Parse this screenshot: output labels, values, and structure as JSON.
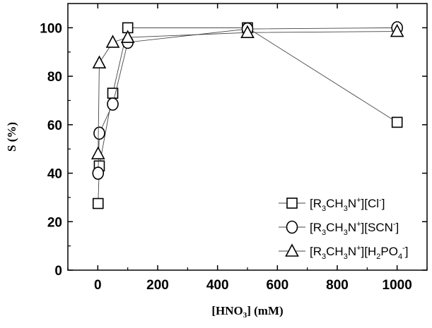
{
  "chart_data": {
    "type": "line",
    "xlabel": {
      "pre": "[HNO",
      "sub": "3",
      "post": "] (mM)"
    },
    "ylabel": "S (%)",
    "xlim": [
      -100,
      1100
    ],
    "ylim": [
      0,
      110
    ],
    "xticks": [
      0,
      200,
      400,
      600,
      800,
      1000
    ],
    "yticks": [
      0,
      20,
      40,
      60,
      80,
      100
    ],
    "legend_position": "bottom-right",
    "series": [
      {
        "marker": "square",
        "label_parts": [
          {
            "t": "[R",
            "s": ""
          },
          {
            "t": "3",
            "s": "sub"
          },
          {
            "t": "CH",
            "s": ""
          },
          {
            "t": "3",
            "s": "sub"
          },
          {
            "t": "N",
            "s": ""
          },
          {
            "t": "+",
            "s": "sup"
          },
          {
            "t": "][Cl",
            "s": ""
          },
          {
            "t": "-",
            "s": "sup"
          },
          {
            "t": "]",
            "s": ""
          }
        ],
        "x": [
          1,
          5,
          50,
          100,
          500,
          1000
        ],
        "y": [
          27.5,
          43,
          73,
          100,
          100,
          61
        ]
      },
      {
        "marker": "circle",
        "label_parts": [
          {
            "t": "[R",
            "s": ""
          },
          {
            "t": "3",
            "s": "sub"
          },
          {
            "t": "CH",
            "s": ""
          },
          {
            "t": "3",
            "s": "sub"
          },
          {
            "t": "N",
            "s": ""
          },
          {
            "t": "+",
            "s": "sup"
          },
          {
            "t": "][SCN",
            "s": ""
          },
          {
            "t": "-",
            "s": "sup"
          },
          {
            "t": "]",
            "s": ""
          }
        ],
        "x": [
          1,
          5,
          50,
          100,
          500,
          1000
        ],
        "y": [
          40,
          56.5,
          68.5,
          94,
          99.5,
          100
        ]
      },
      {
        "marker": "triangle",
        "label_parts": [
          {
            "t": "[R",
            "s": ""
          },
          {
            "t": "3",
            "s": "sub"
          },
          {
            "t": "CH",
            "s": ""
          },
          {
            "t": "3",
            "s": "sub"
          },
          {
            "t": "N",
            "s": ""
          },
          {
            "t": "+",
            "s": "sup"
          },
          {
            "t": "][H",
            "s": ""
          },
          {
            "t": "2",
            "s": "sub"
          },
          {
            "t": "PO",
            "s": ""
          },
          {
            "t": "4",
            "s": "sub"
          },
          {
            "t": "-",
            "s": "sup"
          },
          {
            "t": "]",
            "s": ""
          }
        ],
        "x": [
          1,
          5,
          50,
          100,
          500,
          1000
        ],
        "y": [
          48,
          85.5,
          94,
          96,
          98,
          98.5
        ]
      }
    ]
  }
}
